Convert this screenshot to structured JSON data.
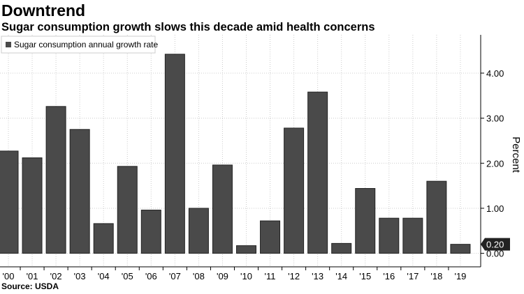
{
  "chart_data": {
    "type": "bar",
    "title": "Downtrend",
    "subtitle": "Sugar consumption growth slows this decade amid health concerns",
    "source": "Source: USDA",
    "y_label": "Percent",
    "series": [
      {
        "name": "Sugar consumption annual growth rate",
        "color": "#4a4a4a",
        "values": [
          2.27,
          2.12,
          3.26,
          2.75,
          0.66,
          1.93,
          0.96,
          4.42,
          1.0,
          1.96,
          0.17,
          0.72,
          2.78,
          3.58,
          0.22,
          1.44,
          0.78,
          0.78,
          1.6,
          0.2
        ],
        "value_labels": [
          null,
          null,
          null,
          null,
          null,
          null,
          null,
          null,
          null,
          null,
          null,
          null,
          null,
          null,
          null,
          null,
          null,
          null,
          null,
          "0.20"
        ]
      }
    ],
    "categories": [
      "'00",
      "'01",
      "'02",
      "'03",
      "'04",
      "'05",
      "'06",
      "'07",
      "'08",
      "'09",
      "'10",
      "'11",
      "'12",
      "'13",
      "'14",
      "'15",
      "'16",
      "'17",
      "'18",
      "'19"
    ],
    "ylim": [
      -0.3,
      4.85
    ],
    "yticks": [
      {
        "value": 0,
        "label": "0.00"
      },
      {
        "value": 1,
        "label": "1.00"
      },
      {
        "value": 2,
        "label": "2.00"
      },
      {
        "value": 3,
        "label": "3.00"
      },
      {
        "value": 4,
        "label": "4.00"
      }
    ],
    "grid": true
  }
}
